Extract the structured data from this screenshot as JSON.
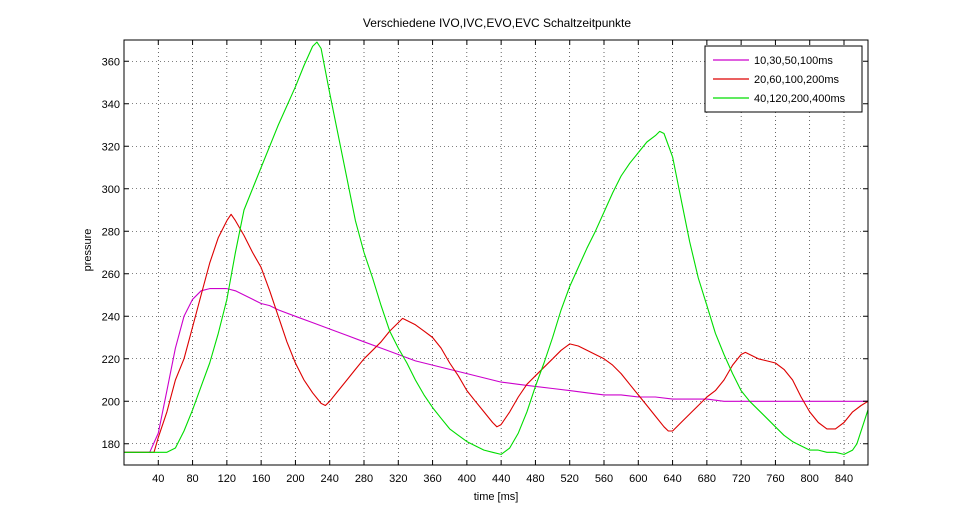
{
  "chart_data": {
    "type": "line",
    "title": "Verschiedene IVO,IVC,EVO,EVC Schaltzeitpunkte",
    "xlabel": "time [ms]",
    "ylabel": "pressure",
    "xlim": [
      0,
      868
    ],
    "ylim": [
      170,
      370
    ],
    "xticks": [
      40,
      80,
      120,
      160,
      200,
      240,
      280,
      320,
      360,
      400,
      440,
      480,
      520,
      560,
      600,
      640,
      680,
      720,
      760,
      800,
      840
    ],
    "yticks": [
      180,
      200,
      220,
      240,
      260,
      280,
      300,
      320,
      340,
      360
    ],
    "grid": true,
    "legend_position": "top-right",
    "series": [
      {
        "name": "10,30,50,100ms",
        "color": "#cc00cc",
        "points": [
          [
            0,
            176
          ],
          [
            30,
            176
          ],
          [
            40,
            185
          ],
          [
            50,
            205
          ],
          [
            60,
            225
          ],
          [
            70,
            240
          ],
          [
            80,
            248
          ],
          [
            90,
            252
          ],
          [
            100,
            253
          ],
          [
            110,
            253
          ],
          [
            120,
            253
          ],
          [
            130,
            252
          ],
          [
            140,
            250
          ],
          [
            150,
            248
          ],
          [
            160,
            246
          ],
          [
            170,
            245
          ],
          [
            180,
            243
          ],
          [
            200,
            240
          ],
          [
            220,
            237
          ],
          [
            240,
            234
          ],
          [
            260,
            231
          ],
          [
            280,
            228
          ],
          [
            300,
            225
          ],
          [
            320,
            222
          ],
          [
            340,
            219
          ],
          [
            360,
            217
          ],
          [
            380,
            215
          ],
          [
            400,
            213
          ],
          [
            420,
            211
          ],
          [
            440,
            209
          ],
          [
            460,
            208
          ],
          [
            480,
            207
          ],
          [
            500,
            206
          ],
          [
            520,
            205
          ],
          [
            540,
            204
          ],
          [
            560,
            203
          ],
          [
            580,
            203
          ],
          [
            600,
            202
          ],
          [
            620,
            202
          ],
          [
            640,
            201
          ],
          [
            660,
            201
          ],
          [
            680,
            201
          ],
          [
            700,
            200
          ],
          [
            720,
            200
          ],
          [
            740,
            200
          ],
          [
            760,
            200
          ],
          [
            780,
            200
          ],
          [
            800,
            200
          ],
          [
            820,
            200
          ],
          [
            840,
            200
          ],
          [
            868,
            200
          ]
        ]
      },
      {
        "name": "20,60,100,200ms",
        "color": "#dd0000",
        "points": [
          [
            0,
            176
          ],
          [
            35,
            176
          ],
          [
            40,
            183
          ],
          [
            50,
            195
          ],
          [
            60,
            210
          ],
          [
            70,
            220
          ],
          [
            80,
            235
          ],
          [
            90,
            250
          ],
          [
            100,
            265
          ],
          [
            110,
            277
          ],
          [
            120,
            285
          ],
          [
            125,
            288
          ],
          [
            130,
            285
          ],
          [
            140,
            278
          ],
          [
            150,
            270
          ],
          [
            160,
            263
          ],
          [
            170,
            252
          ],
          [
            180,
            240
          ],
          [
            190,
            228
          ],
          [
            200,
            218
          ],
          [
            210,
            210
          ],
          [
            220,
            204
          ],
          [
            230,
            199
          ],
          [
            235,
            198
          ],
          [
            240,
            200
          ],
          [
            250,
            205
          ],
          [
            260,
            210
          ],
          [
            270,
            215
          ],
          [
            280,
            220
          ],
          [
            290,
            224
          ],
          [
            300,
            228
          ],
          [
            310,
            233
          ],
          [
            320,
            237
          ],
          [
            325,
            239
          ],
          [
            330,
            238
          ],
          [
            340,
            236
          ],
          [
            350,
            233
          ],
          [
            360,
            230
          ],
          [
            370,
            225
          ],
          [
            380,
            218
          ],
          [
            390,
            212
          ],
          [
            400,
            205
          ],
          [
            410,
            200
          ],
          [
            420,
            195
          ],
          [
            430,
            190
          ],
          [
            435,
            188
          ],
          [
            440,
            189
          ],
          [
            450,
            195
          ],
          [
            460,
            202
          ],
          [
            470,
            208
          ],
          [
            480,
            212
          ],
          [
            490,
            216
          ],
          [
            500,
            220
          ],
          [
            510,
            224
          ],
          [
            520,
            227
          ],
          [
            530,
            226
          ],
          [
            540,
            224
          ],
          [
            550,
            222
          ],
          [
            560,
            220
          ],
          [
            570,
            217
          ],
          [
            580,
            213
          ],
          [
            590,
            208
          ],
          [
            600,
            203
          ],
          [
            610,
            198
          ],
          [
            620,
            193
          ],
          [
            630,
            188
          ],
          [
            635,
            186
          ],
          [
            640,
            186
          ],
          [
            650,
            190
          ],
          [
            660,
            194
          ],
          [
            670,
            198
          ],
          [
            680,
            202
          ],
          [
            690,
            205
          ],
          [
            700,
            210
          ],
          [
            710,
            217
          ],
          [
            720,
            222
          ],
          [
            725,
            223
          ],
          [
            730,
            222
          ],
          [
            740,
            220
          ],
          [
            750,
            219
          ],
          [
            760,
            218
          ],
          [
            770,
            215
          ],
          [
            780,
            210
          ],
          [
            790,
            202
          ],
          [
            800,
            195
          ],
          [
            810,
            190
          ],
          [
            820,
            187
          ],
          [
            830,
            187
          ],
          [
            840,
            190
          ],
          [
            850,
            195
          ],
          [
            860,
            198
          ],
          [
            868,
            200
          ]
        ]
      },
      {
        "name": "40,120,200,400ms",
        "color": "#00dd00",
        "points": [
          [
            0,
            176
          ],
          [
            50,
            176
          ],
          [
            60,
            178
          ],
          [
            70,
            186
          ],
          [
            80,
            196
          ],
          [
            90,
            207
          ],
          [
            100,
            218
          ],
          [
            110,
            232
          ],
          [
            120,
            248
          ],
          [
            130,
            270
          ],
          [
            140,
            290
          ],
          [
            160,
            310
          ],
          [
            180,
            330
          ],
          [
            200,
            348
          ],
          [
            210,
            358
          ],
          [
            220,
            367
          ],
          [
            225,
            369
          ],
          [
            230,
            366
          ],
          [
            240,
            345
          ],
          [
            250,
            325
          ],
          [
            260,
            305
          ],
          [
            270,
            285
          ],
          [
            280,
            270
          ],
          [
            290,
            258
          ],
          [
            300,
            245
          ],
          [
            310,
            233
          ],
          [
            320,
            225
          ],
          [
            330,
            218
          ],
          [
            340,
            210
          ],
          [
            350,
            203
          ],
          [
            360,
            197
          ],
          [
            370,
            192
          ],
          [
            380,
            187
          ],
          [
            390,
            184
          ],
          [
            400,
            181
          ],
          [
            410,
            179
          ],
          [
            420,
            177
          ],
          [
            430,
            176
          ],
          [
            440,
            175
          ],
          [
            450,
            178
          ],
          [
            460,
            185
          ],
          [
            470,
            195
          ],
          [
            480,
            207
          ],
          [
            490,
            218
          ],
          [
            500,
            230
          ],
          [
            510,
            243
          ],
          [
            520,
            254
          ],
          [
            530,
            263
          ],
          [
            540,
            272
          ],
          [
            550,
            280
          ],
          [
            560,
            289
          ],
          [
            570,
            298
          ],
          [
            580,
            306
          ],
          [
            590,
            312
          ],
          [
            600,
            317
          ],
          [
            610,
            322
          ],
          [
            620,
            325
          ],
          [
            625,
            327
          ],
          [
            630,
            326
          ],
          [
            640,
            315
          ],
          [
            650,
            295
          ],
          [
            660,
            275
          ],
          [
            670,
            258
          ],
          [
            680,
            245
          ],
          [
            690,
            232
          ],
          [
            700,
            222
          ],
          [
            710,
            213
          ],
          [
            720,
            205
          ],
          [
            730,
            200
          ],
          [
            740,
            196
          ],
          [
            750,
            192
          ],
          [
            760,
            188
          ],
          [
            770,
            184
          ],
          [
            780,
            181
          ],
          [
            790,
            179
          ],
          [
            800,
            177
          ],
          [
            810,
            177
          ],
          [
            820,
            176
          ],
          [
            830,
            176
          ],
          [
            840,
            175
          ],
          [
            850,
            177
          ],
          [
            855,
            180
          ],
          [
            868,
            196
          ]
        ]
      }
    ]
  }
}
